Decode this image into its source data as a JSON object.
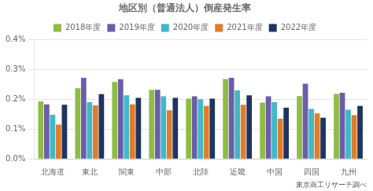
{
  "chart_data": {
    "type": "bar",
    "title": "地区別（普通法人）倒産発生率",
    "categories": [
      "北海道",
      "東北",
      "関東",
      "中部",
      "北陸",
      "近畿",
      "中国",
      "四国",
      "九州"
    ],
    "series": [
      {
        "name": "2018年度",
        "color": "#8fbc45",
        "values": [
          0.00193,
          0.00237,
          0.00258,
          0.00232,
          0.00202,
          0.00268,
          0.00189,
          0.00211,
          0.00218
        ]
      },
      {
        "name": "2019年度",
        "color": "#6b5ea8",
        "values": [
          0.00183,
          0.00272,
          0.00267,
          0.00232,
          0.0021,
          0.00272,
          0.0021,
          0.00252,
          0.00222
        ]
      },
      {
        "name": "2020年度",
        "color": "#41b8c8",
        "values": [
          0.00148,
          0.0019,
          0.00213,
          0.0021,
          0.002,
          0.0023,
          0.0019,
          0.00168,
          0.00165
        ]
      },
      {
        "name": "2021年度",
        "color": "#e07d2b",
        "values": [
          0.00115,
          0.0018,
          0.00183,
          0.00163,
          0.00178,
          0.00182,
          0.00135,
          0.00153,
          0.00147
        ]
      },
      {
        "name": "2022年度",
        "color": "#1e3560",
        "values": [
          0.00182,
          0.00217,
          0.00205,
          0.00205,
          0.00202,
          0.00213,
          0.00172,
          0.00138,
          0.00178
        ]
      }
    ],
    "ylim": [
      0,
      0.004
    ],
    "yticks": [
      {
        "value": 0.0,
        "label": "0.0%"
      },
      {
        "value": 0.001,
        "label": "0.1%"
      },
      {
        "value": 0.002,
        "label": "0.2%"
      },
      {
        "value": 0.003,
        "label": "0.3%"
      },
      {
        "value": 0.004,
        "label": "0.4%"
      }
    ],
    "grid": true,
    "legend": "top",
    "annotations": [
      "東京商工リサーチ調べ"
    ]
  }
}
